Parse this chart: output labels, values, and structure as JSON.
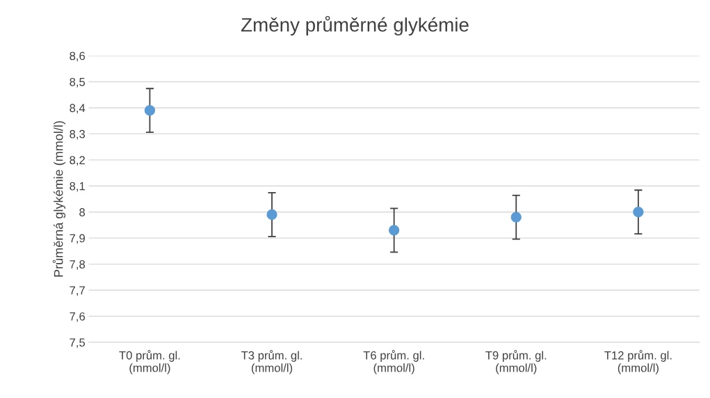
{
  "chart_data": {
    "type": "scatter",
    "title": "Změny průměrné glykémie",
    "ylabel": "Průměrná glykémie (mmol/l)",
    "categories": [
      "T0 prům. gl.\n(mmol/l)",
      "T3 prům. gl.\n(mmol/l)",
      "T6 prům. gl.\n(mmol/l)",
      "T9 prům. gl.\n(mmol/l)",
      "T12 prům. gl.\n(mmol/l)"
    ],
    "values": [
      8.39,
      7.99,
      7.93,
      7.98,
      8.0
    ],
    "errors": [
      0.084,
      0.084,
      0.084,
      0.084,
      0.084
    ],
    "color": "#5b9bd5",
    "marker": "circle",
    "ylim": [
      7.5,
      8.6
    ],
    "yticks": [
      {
        "value": 7.5,
        "label": "7,5"
      },
      {
        "value": 7.6,
        "label": "7,6"
      },
      {
        "value": 7.7,
        "label": "7,7"
      },
      {
        "value": 7.8,
        "label": "7,8"
      },
      {
        "value": 7.9,
        "label": "7,9"
      },
      8,
      {
        "value": 8.1,
        "label": "8,1"
      },
      {
        "value": 8.2,
        "label": "8,2"
      },
      {
        "value": 8.3,
        "label": "8,3"
      },
      {
        "value": 8.4,
        "label": "8,4"
      },
      {
        "value": 8.5,
        "label": "8,5"
      },
      {
        "value": 8.6,
        "label": "8,6"
      }
    ],
    "grid": "y",
    "legend": false
  }
}
